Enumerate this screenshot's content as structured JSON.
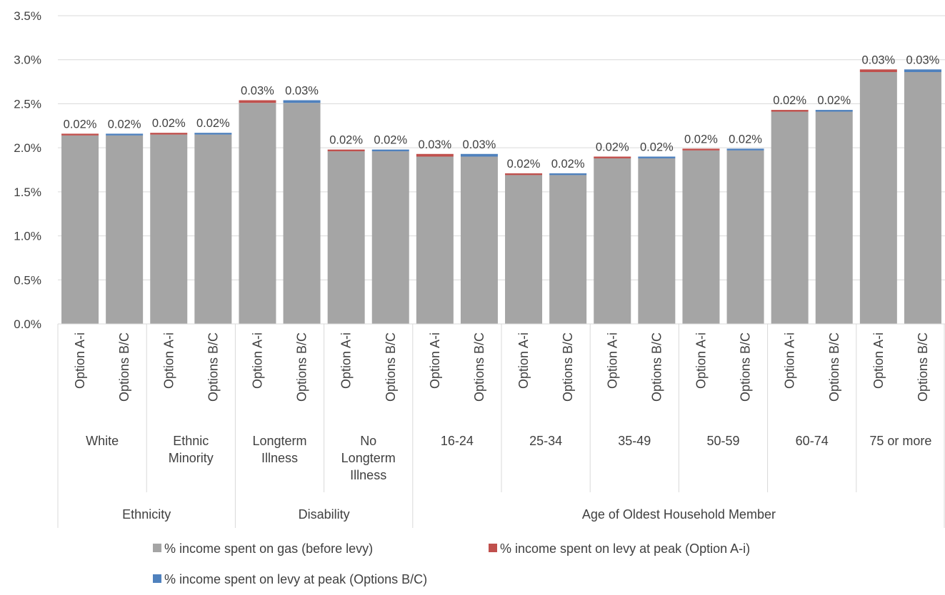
{
  "chart_data": {
    "type": "bar",
    "stacked": true,
    "ylim": [
      0,
      3.5
    ],
    "y_ticks": [
      "0.0%",
      "0.5%",
      "1.0%",
      "1.5%",
      "2.0%",
      "2.5%",
      "3.0%",
      "3.5%"
    ],
    "grid": true,
    "legend_position": "bottom",
    "series": [
      {
        "name": "% income spent on gas (before levy)",
        "color": "#a5a5a5"
      },
      {
        "name": "% income spent on levy at peak (Option A-i)",
        "color": "#c0504d"
      },
      {
        "name": "% income spent on levy at peak (Options B/C)",
        "color": "#4f81bd"
      }
    ],
    "groups": [
      {
        "name": "Ethnicity",
        "subgroups": [
          {
            "name": "White",
            "bars": [
              {
                "label": "Option A-i",
                "gas": 2.14,
                "levy": 0.02,
                "levy_series": 1,
                "data_label": "0.02%"
              },
              {
                "label": "Options B/C",
                "gas": 2.14,
                "levy": 0.02,
                "levy_series": 2,
                "data_label": "0.02%"
              }
            ]
          },
          {
            "name": "Ethnic Minority",
            "bars": [
              {
                "label": "Option A-i",
                "gas": 2.15,
                "levy": 0.02,
                "levy_series": 1,
                "data_label": "0.02%"
              },
              {
                "label": "Options B/C",
                "gas": 2.15,
                "levy": 0.02,
                "levy_series": 2,
                "data_label": "0.02%"
              }
            ]
          }
        ]
      },
      {
        "name": "Disability",
        "subgroups": [
          {
            "name": "Longterm Illness",
            "bars": [
              {
                "label": "Option A-i",
                "gas": 2.51,
                "levy": 0.03,
                "levy_series": 1,
                "data_label": "0.03%"
              },
              {
                "label": "Options B/C",
                "gas": 2.51,
                "levy": 0.03,
                "levy_series": 2,
                "data_label": "0.03%"
              }
            ]
          },
          {
            "name": "No Longterm Illness",
            "bars": [
              {
                "label": "Option A-i",
                "gas": 1.96,
                "levy": 0.02,
                "levy_series": 1,
                "data_label": "0.02%"
              },
              {
                "label": "Options B/C",
                "gas": 1.96,
                "levy": 0.02,
                "levy_series": 2,
                "data_label": "0.02%"
              }
            ]
          }
        ]
      },
      {
        "name": "Age of Oldest Household Member",
        "subgroups": [
          {
            "name": "16-24",
            "bars": [
              {
                "label": "Option A-i",
                "gas": 1.9,
                "levy": 0.03,
                "levy_series": 1,
                "data_label": "0.03%"
              },
              {
                "label": "Options B/C",
                "gas": 1.9,
                "levy": 0.03,
                "levy_series": 2,
                "data_label": "0.03%"
              }
            ]
          },
          {
            "name": "25-34",
            "bars": [
              {
                "label": "Option A-i",
                "gas": 1.69,
                "levy": 0.02,
                "levy_series": 1,
                "data_label": "0.02%"
              },
              {
                "label": "Options B/C",
                "gas": 1.69,
                "levy": 0.02,
                "levy_series": 2,
                "data_label": "0.02%"
              }
            ]
          },
          {
            "name": "35-49",
            "bars": [
              {
                "label": "Option A-i",
                "gas": 1.88,
                "levy": 0.02,
                "levy_series": 1,
                "data_label": "0.02%"
              },
              {
                "label": "Options B/C",
                "gas": 1.88,
                "levy": 0.02,
                "levy_series": 2,
                "data_label": "0.02%"
              }
            ]
          },
          {
            "name": "50-59",
            "bars": [
              {
                "label": "Option A-i",
                "gas": 1.97,
                "levy": 0.02,
                "levy_series": 1,
                "data_label": "0.02%"
              },
              {
                "label": "Options B/C",
                "gas": 1.97,
                "levy": 0.02,
                "levy_series": 2,
                "data_label": "0.02%"
              }
            ]
          },
          {
            "name": "60-74",
            "bars": [
              {
                "label": "Option A-i",
                "gas": 2.41,
                "levy": 0.02,
                "levy_series": 1,
                "data_label": "0.02%"
              },
              {
                "label": "Options B/C",
                "gas": 2.41,
                "levy": 0.02,
                "levy_series": 2,
                "data_label": "0.02%"
              }
            ]
          },
          {
            "name": "75 or more",
            "bars": [
              {
                "label": "Option A-i",
                "gas": 2.86,
                "levy": 0.03,
                "levy_series": 1,
                "data_label": "0.03%"
              },
              {
                "label": "Options B/C",
                "gas": 2.86,
                "levy": 0.03,
                "levy_series": 2,
                "data_label": "0.03%"
              }
            ]
          }
        ]
      }
    ]
  }
}
